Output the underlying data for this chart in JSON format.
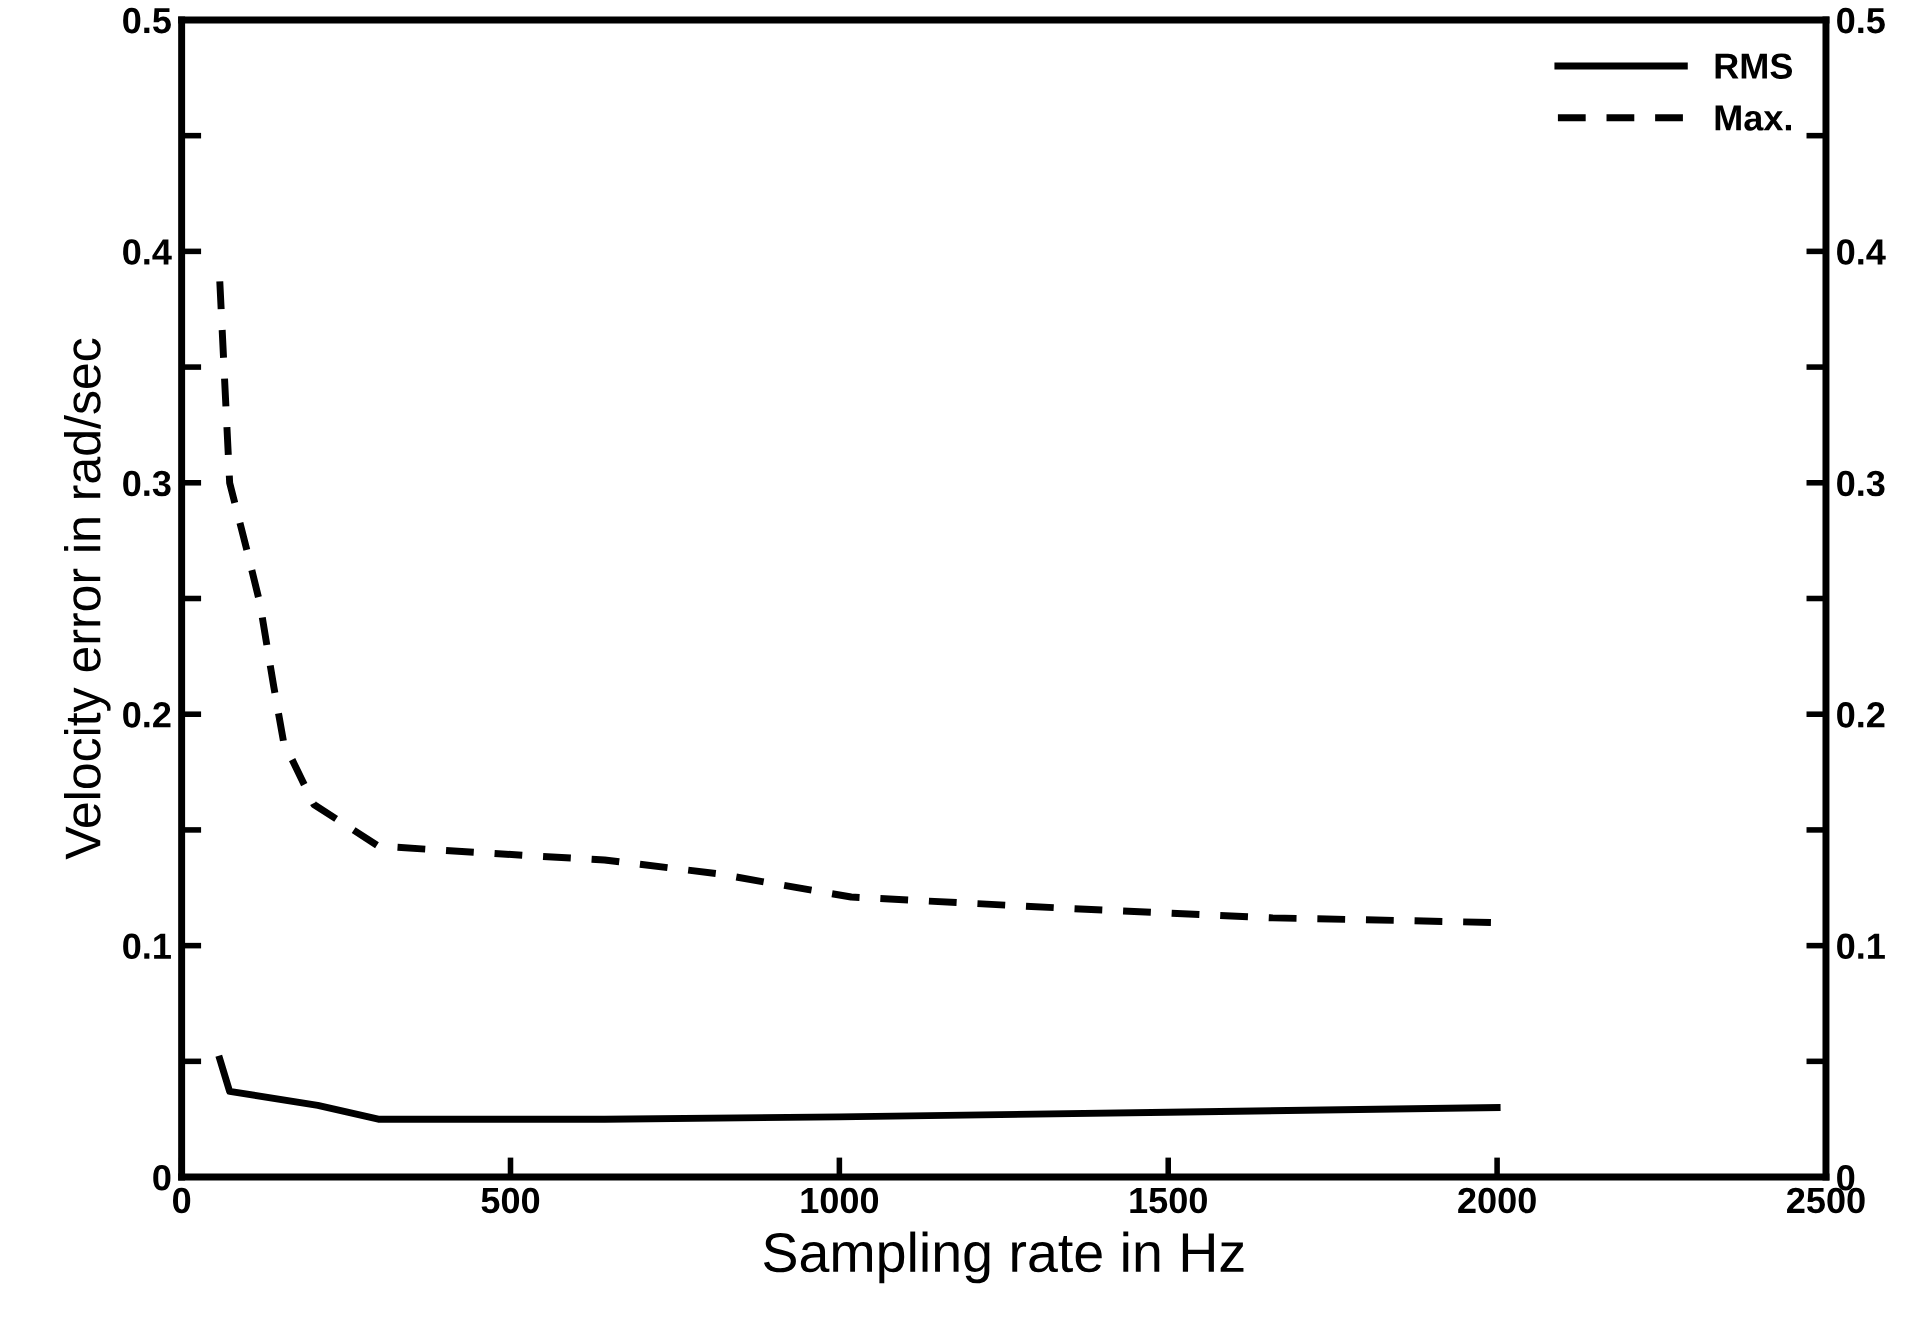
{
  "chart_data": {
    "type": "line",
    "xlabel": "Sampling rate in Hz",
    "ylabel": "Velocity error in rad/sec",
    "xlim": [
      0,
      2500
    ],
    "xticks": [
      0,
      500,
      1000,
      1500,
      2000,
      2500
    ],
    "ylim": [
      0,
      0.5
    ],
    "yticks": [
      0,
      {
        "value": 0.05,
        "label": null
      },
      0.1,
      {
        "value": 0.15,
        "label": null
      },
      0.2,
      {
        "value": 0.25,
        "label": null
      },
      0.3,
      {
        "value": 0.35,
        "label": null
      },
      0.4,
      {
        "value": 0.45,
        "label": null
      },
      0.5
    ],
    "y2lim": [
      0,
      0.5
    ],
    "y2ticks": [
      0,
      {
        "value": 0.05,
        "label": null
      },
      0.1,
      {
        "value": 0.15,
        "label": null
      },
      0.2,
      {
        "value": 0.25,
        "label": null
      },
      0.3,
      {
        "value": 0.35,
        "label": null
      },
      0.4,
      {
        "value": 0.45,
        "label": null
      },
      0.5
    ],
    "grid": false,
    "legend": "top right",
    "series": [
      {
        "name": "RMS",
        "color": "#000000",
        "line_style": "solid",
        "x": [
          58,
          73,
          207,
          299,
          643,
          1000,
          1500,
          2000
        ],
        "values": [
          0.051,
          0.037,
          0.031,
          0.025,
          0.025,
          0.026,
          0.028,
          0.03
        ]
      },
      {
        "name": "Max.",
        "color": "#000000",
        "line_style": "dashed",
        "x": [
          58,
          73,
          100,
          119,
          140,
          155,
          201,
          299,
          521,
          643,
          817,
          896,
          1018,
          1354,
          1659,
          1994
        ],
        "values": [
          0.387,
          0.3,
          0.27,
          0.248,
          0.212,
          0.188,
          0.161,
          0.143,
          0.139,
          0.137,
          0.131,
          0.127,
          0.121,
          0.116,
          0.112,
          0.11
        ]
      }
    ]
  }
}
